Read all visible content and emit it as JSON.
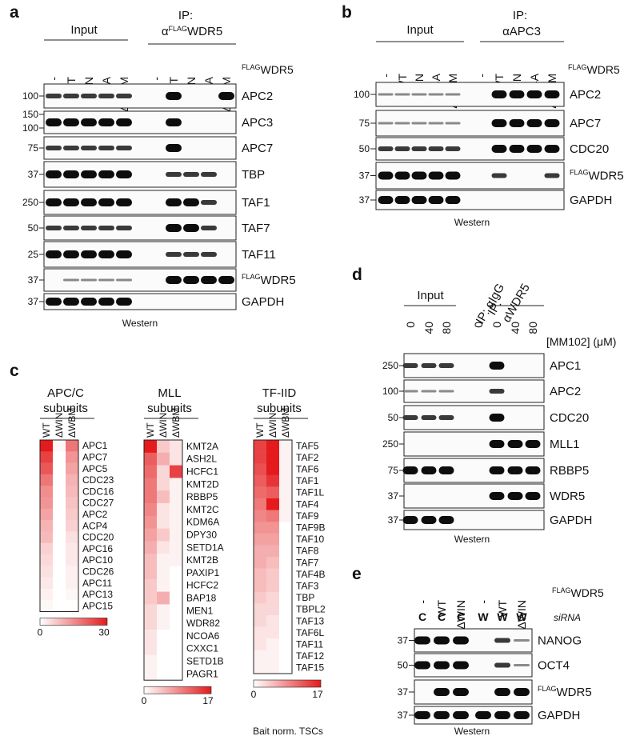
{
  "panels": {
    "a": {
      "letter": "a",
      "input": "Input",
      "ip": "IP:",
      "ip_antibody": {
        "prefix": "α",
        "sup": "FLAG",
        "name": "WDR5"
      },
      "lanes": [
        "-",
        "WT",
        "ΔWIN",
        "4A",
        "ΔWBM",
        "-",
        "WT",
        "ΔWIN",
        "4A",
        "ΔWBM"
      ],
      "lane_legend": {
        "sup": "FLAG",
        "name": "WDR5"
      },
      "blots": [
        {
          "label": "APC2",
          "mw": [
            100
          ]
        },
        {
          "label": "APC3",
          "mw": [
            150,
            100
          ]
        },
        {
          "label": "APC7",
          "mw": [
            75
          ]
        },
        {
          "label": "TBP",
          "mw": [
            37
          ]
        },
        {
          "label": "TAF1",
          "mw": [
            250
          ]
        },
        {
          "label": "TAF7",
          "mw": [
            50
          ]
        },
        {
          "label": "TAF11",
          "mw": [
            25
          ]
        },
        {
          "label": "WDR5",
          "label_sup": "FLAG",
          "mw": [
            37
          ]
        },
        {
          "label": "GAPDH",
          "mw": [
            37
          ]
        }
      ],
      "footer": "Western"
    },
    "b": {
      "letter": "b",
      "input": "Input",
      "ip": "IP:",
      "ip_antibody": "αAPC3",
      "lanes": [
        "-",
        "WT",
        "ΔWIN",
        "4A",
        "ΔWBM",
        "-",
        "WT",
        "ΔWIN",
        "4A",
        "ΔWBM"
      ],
      "lane_legend": {
        "sup": "FLAG",
        "name": "WDR5"
      },
      "blots": [
        {
          "label": "APC2",
          "mw": [
            100
          ]
        },
        {
          "label": "APC7",
          "mw": [
            75
          ]
        },
        {
          "label": "CDC20",
          "mw": [
            50
          ]
        },
        {
          "label": "WDR5",
          "label_sup": "FLAG",
          "mw": [
            37
          ]
        },
        {
          "label": "GAPDH",
          "mw": [
            37
          ]
        }
      ],
      "footer": "Western"
    },
    "d": {
      "letter": "d",
      "input": "Input",
      "ip_igg": "IP: αIgG",
      "ip_wdr5": [
        "IP:",
        "αWDR5"
      ],
      "lanes": [
        "0",
        "40",
        "80",
        "0",
        "0",
        "40",
        "80"
      ],
      "lane_legend": "[MM102] (μM)",
      "blots": [
        {
          "label": "APC1",
          "mw": [
            250
          ]
        },
        {
          "label": "APC2",
          "mw": [
            100
          ]
        },
        {
          "label": "CDC20",
          "mw": [
            50
          ]
        },
        {
          "label": "MLL1",
          "mw": [
            250
          ]
        },
        {
          "label": "RBBP5",
          "mw": [
            75
          ]
        },
        {
          "label": "WDR5",
          "mw": [
            37
          ]
        },
        {
          "label": "GAPDH",
          "mw": [
            37
          ]
        }
      ],
      "footer": "Western"
    },
    "e": {
      "letter": "e",
      "lanes": [
        "-",
        "WT",
        "ΔWIN",
        "-",
        "WT",
        "ΔWIN"
      ],
      "lane_legend": {
        "sup": "FLAG",
        "name": "WDR5"
      },
      "sirna": {
        "label": "siRNA",
        "values": [
          "C",
          "C",
          "C",
          "W",
          "W",
          "W"
        ],
        "colors": {
          "C": "#1fa04a",
          "W": "#e0262d"
        }
      },
      "blots": [
        {
          "label": "NANOG",
          "mw": [
            37
          ]
        },
        {
          "label": "OCT4",
          "mw": [
            50
          ]
        },
        {
          "label": "WDR5",
          "label_sup": "FLAG",
          "mw": [
            37
          ]
        },
        {
          "label": "GAPDH",
          "mw": [
            37
          ]
        }
      ],
      "footer": "Western"
    },
    "c": {
      "letter": "c",
      "caption": "Bait norm. TSCs",
      "color": "#e41a1c",
      "heatmaps": [
        {
          "title": [
            "APC/C",
            "subunits"
          ],
          "columns": [
            "WT",
            "ΔWIN",
            "ΔWBM"
          ],
          "vlim": [
            0,
            30
          ],
          "rows": [
            "APC1",
            "APC7",
            "APC5",
            "CDC23",
            "CDC16",
            "CDC27",
            "APC2",
            "ACP4",
            "CDC20",
            "APC16",
            "APC10",
            "CDC26",
            "APC11",
            "APC13",
            "APC15"
          ],
          "values": [
            [
              30,
              1,
              18
            ],
            [
              25,
              0,
              14
            ],
            [
              22,
              0,
              12
            ],
            [
              18,
              0,
              10
            ],
            [
              15,
              0,
              9
            ],
            [
              14,
              0,
              8
            ],
            [
              12,
              0,
              7
            ],
            [
              10,
              0,
              6
            ],
            [
              9,
              0,
              4
            ],
            [
              6,
              0,
              3
            ],
            [
              5,
              0,
              3
            ],
            [
              4,
              0,
              2
            ],
            [
              3,
              0,
              2
            ],
            [
              2,
              0,
              1
            ],
            [
              1,
              0,
              0
            ]
          ]
        },
        {
          "title": [
            "MLL",
            "subunits"
          ],
          "columns": [
            "WT",
            "ΔWIN",
            "ΔWBM"
          ],
          "vlim": [
            0,
            17
          ],
          "rows": [
            "KMT2A",
            "ASH2L",
            "HCFC1",
            "KMT2D",
            "RBBP5",
            "KMT2C",
            "KDM6A",
            "DPY30",
            "SETD1A",
            "KMT2B",
            "PAXIP1",
            "HCFC2",
            "BAP18",
            "MEN1",
            "WDR82",
            "NCOA6",
            "CXXC1",
            "SETD1B",
            "PAGR1"
          ],
          "values": [
            [
              17,
              4,
              2
            ],
            [
              12,
              6,
              2
            ],
            [
              11,
              3,
              14
            ],
            [
              10,
              3,
              1
            ],
            [
              10,
              5,
              1
            ],
            [
              9,
              2,
              1
            ],
            [
              8,
              2,
              1
            ],
            [
              7,
              4,
              1
            ],
            [
              6,
              2,
              1
            ],
            [
              5,
              1,
              1
            ],
            [
              5,
              1,
              0
            ],
            [
              4,
              1,
              0
            ],
            [
              4,
              6,
              0
            ],
            [
              3,
              1,
              0
            ],
            [
              3,
              1,
              0
            ],
            [
              2,
              0,
              0
            ],
            [
              2,
              0,
              0
            ],
            [
              1,
              0,
              0
            ],
            [
              1,
              0,
              0
            ]
          ]
        },
        {
          "title": [
            "TF-IID",
            "subunits"
          ],
          "columns": [
            "WT",
            "ΔWIN",
            "ΔWBM"
          ],
          "vlim": [
            0,
            17
          ],
          "rows": [
            "TAF5",
            "TAF2",
            "TAF6",
            "TAF1",
            "TAF1L",
            "TAF4",
            "TAF9",
            "TAF9B",
            "TAF10",
            "TAF8",
            "TAF7",
            "TAF4B",
            "TAF3",
            "TBP",
            "TBPL2",
            "TAF13",
            "TAF6L",
            "TAF11",
            "TAF12",
            "TAF15"
          ],
          "values": [
            [
              14,
              17,
              1
            ],
            [
              14,
              17,
              1
            ],
            [
              13,
              17,
              1
            ],
            [
              12,
              15,
              1
            ],
            [
              11,
              12,
              1
            ],
            [
              10,
              17,
              1
            ],
            [
              9,
              10,
              1
            ],
            [
              8,
              8,
              0
            ],
            [
              7,
              7,
              0
            ],
            [
              6,
              6,
              0
            ],
            [
              6,
              5,
              0
            ],
            [
              5,
              4,
              0
            ],
            [
              5,
              4,
              0
            ],
            [
              4,
              3,
              0
            ],
            [
              3,
              3,
              0
            ],
            [
              3,
              2,
              0
            ],
            [
              2,
              2,
              0
            ],
            [
              2,
              1,
              0
            ],
            [
              1,
              1,
              0
            ],
            [
              1,
              1,
              0
            ]
          ]
        }
      ]
    }
  }
}
